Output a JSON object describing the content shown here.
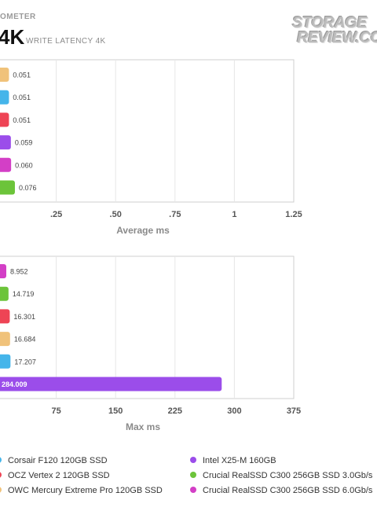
{
  "header": {
    "top_label": "OMETER",
    "big_label": "4K",
    "sub_label": "WRITE LATENCY 4K"
  },
  "logo": {
    "line1": "STORAGE",
    "line2": "REVIEW.COM"
  },
  "chart_data": [
    {
      "type": "bar",
      "orientation": "horizontal",
      "xlabel": "Average ms",
      "xlim": [
        0,
        1.25
      ],
      "ticks": [
        0.25,
        0.5,
        0.75,
        1,
        1.25
      ],
      "tick_labels": [
        ".25",
        ".50",
        ".75",
        "1",
        "1.25"
      ],
      "grid": true,
      "bars": [
        {
          "series": "OWC Mercury Extreme Pro 120GB SSD",
          "value": 0.051,
          "label": "0.051",
          "color": "#f0c27a"
        },
        {
          "series": "Corsair F120 120GB SSD",
          "value": 0.051,
          "label": "0.051",
          "color": "#45b5ea"
        },
        {
          "series": "OCZ Vertex 2 120GB SSD",
          "value": 0.051,
          "label": "0.051",
          "color": "#ee4455"
        },
        {
          "series": "Intel X25-M 160GB",
          "value": 0.059,
          "label": "0.059",
          "color": "#9b4dea"
        },
        {
          "series": "Crucial RealSSD C300 256GB SSD 6.0Gb/s",
          "value": 0.06,
          "label": "0.060",
          "color": "#d33fc6"
        },
        {
          "series": "Crucial RealSSD C300 256GB SSD 3.0Gb/s",
          "value": 0.076,
          "label": "0.076",
          "color": "#6cc43a"
        }
      ]
    },
    {
      "type": "bar",
      "orientation": "horizontal",
      "xlabel": "Max ms",
      "xlim": [
        0,
        375
      ],
      "ticks": [
        75,
        150,
        225,
        300,
        375
      ],
      "tick_labels": [
        "75",
        "150",
        "225",
        "300",
        "375"
      ],
      "grid": true,
      "bars": [
        {
          "series": "Crucial RealSSD C300 256GB SSD 6.0Gb/s",
          "value": 8.952,
          "label": "8.952",
          "color": "#d33fc6"
        },
        {
          "series": "Crucial RealSSD C300 256GB SSD 3.0Gb/s",
          "value": 14.719,
          "label": "14.719",
          "color": "#6cc43a"
        },
        {
          "series": "OCZ Vertex 2 120GB SSD",
          "value": 16.301,
          "label": "16.301",
          "color": "#ee4455"
        },
        {
          "series": "OWC Mercury Extreme Pro 120GB SSD",
          "value": 16.684,
          "label": "16.684",
          "color": "#f0c27a"
        },
        {
          "series": "Corsair F120 120GB SSD",
          "value": 17.207,
          "label": "17.207",
          "color": "#45b5ea"
        },
        {
          "series": "Intel X25-M 160GB",
          "value": 284.009,
          "label": "284.009",
          "color": "#9b4dea"
        }
      ]
    }
  ],
  "legend": [
    {
      "label": "Corsair F120 120GB SSD",
      "color": "#45b5ea"
    },
    {
      "label": "Intel X25-M 160GB",
      "color": "#9b4dea"
    },
    {
      "label": "OCZ Vertex 2 120GB SSD",
      "color": "#ee4455"
    },
    {
      "label": "Crucial RealSSD C300 256GB SSD 3.0Gb/s",
      "color": "#6cc43a"
    },
    {
      "label": "OWC Mercury Extreme Pro 120GB SSD",
      "color": "#f0c27a"
    },
    {
      "label": "Crucial RealSSD C300 256GB SSD 6.0Gb/s",
      "color": "#d33fc6"
    }
  ]
}
